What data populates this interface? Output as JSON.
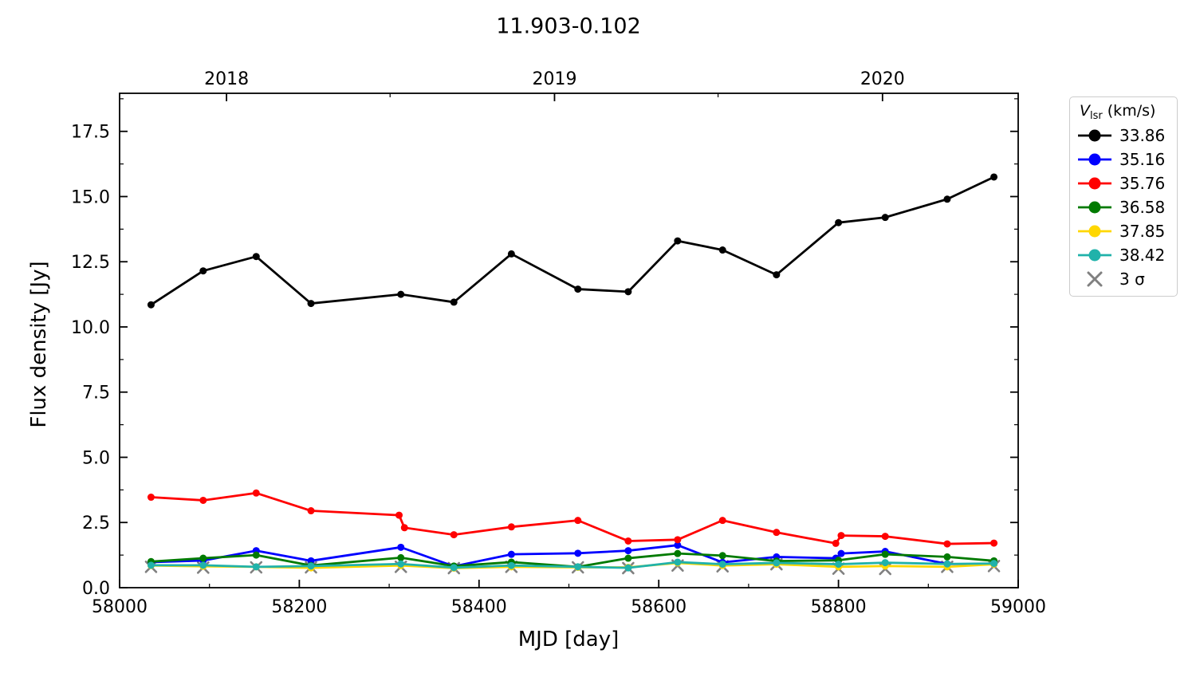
{
  "chart_data": {
    "type": "line",
    "title": "11.903-0.102",
    "xlabel": "MJD [day]",
    "ylabel": "Flux density [Jy]",
    "xlim": [
      58000,
      59000
    ],
    "ylim": [
      0,
      18.96
    ],
    "grid": false,
    "legend_position": "outside-right",
    "x_axis": {
      "major_ticks": [
        58000,
        58200,
        58400,
        58600,
        58800,
        59000
      ],
      "major_tick_labels": [
        "58000",
        "58200",
        "58400",
        "58600",
        "58800",
        "59000"
      ],
      "minor_ticks": [
        58100,
        58300,
        58500,
        58700,
        58900
      ]
    },
    "y_axis": {
      "major_ticks": [
        0,
        2.5,
        5.0,
        7.5,
        10.0,
        12.5,
        15.0,
        17.5
      ],
      "major_tick_labels": [
        "0.0",
        "2.5",
        "5.0",
        "7.5",
        "10.0",
        "12.5",
        "15.0",
        "17.5"
      ],
      "minor_ticks": [
        1.25,
        3.75,
        6.25,
        8.75,
        11.25,
        13.75,
        16.25,
        18.75
      ]
    },
    "top_axis": {
      "year_ticks": [
        {
          "label": "2018",
          "mjd": 58119
        },
        {
          "label": "2019",
          "mjd": 58484
        },
        {
          "label": "2020",
          "mjd": 58849
        }
      ],
      "minor_ticks": [
        58301,
        58666
      ]
    },
    "legend": {
      "title_v": "V",
      "title_sub": "lsr",
      "title_rest": " (km/s)",
      "entries": [
        {
          "label": "33.86",
          "color": "#000000",
          "marker": "circle"
        },
        {
          "label": "35.16",
          "color": "#0000ff",
          "marker": "circle"
        },
        {
          "label": "35.76",
          "color": "#ff0000",
          "marker": "circle"
        },
        {
          "label": "36.58",
          "color": "#007a00",
          "marker": "circle"
        },
        {
          "label": "37.85",
          "color": "#ffd700",
          "marker": "circle"
        },
        {
          "label": "38.42",
          "color": "#20b2aa",
          "marker": "circle"
        },
        {
          "label": "3 σ",
          "color": "#808080",
          "marker": "x"
        }
      ]
    },
    "series": [
      {
        "name": "33.86",
        "color": "#000000",
        "x": [
          58035,
          58093,
          58152,
          58213,
          58313,
          58372,
          58436,
          58510,
          58566,
          58621,
          58671,
          58731,
          58800,
          58852,
          58921,
          58973
        ],
        "y": [
          10.85,
          12.15,
          12.7,
          10.9,
          11.25,
          10.95,
          12.8,
          11.45,
          11.35,
          13.3,
          12.95,
          12.0,
          14.0,
          14.2,
          14.9,
          15.75
        ]
      },
      {
        "name": "35.16",
        "color": "#0000ff",
        "x": [
          58035,
          58093,
          58152,
          58213,
          58313,
          58372,
          58436,
          58510,
          58566,
          58621,
          58671,
          58731,
          58797,
          58803,
          58852,
          58921,
          58973
        ],
        "y": [
          0.98,
          1.04,
          1.42,
          1.03,
          1.55,
          0.82,
          1.28,
          1.32,
          1.42,
          1.63,
          0.97,
          1.18,
          1.13,
          1.31,
          1.39,
          0.91,
          0.9
        ]
      },
      {
        "name": "35.76",
        "color": "#ff0000",
        "x": [
          58035,
          58093,
          58152,
          58213,
          58311,
          58317,
          58372,
          58436,
          58510,
          58566,
          58621,
          58671,
          58731,
          58797,
          58803,
          58852,
          58921,
          58973
        ],
        "y": [
          3.47,
          3.35,
          3.63,
          2.95,
          2.78,
          2.3,
          2.03,
          2.33,
          2.58,
          1.79,
          1.84,
          2.58,
          2.12,
          1.7,
          2.0,
          1.97,
          1.68,
          1.71
        ]
      },
      {
        "name": "36.58",
        "color": "#007a00",
        "x": [
          58035,
          58093,
          58152,
          58213,
          58313,
          58372,
          58436,
          58510,
          58566,
          58621,
          58671,
          58731,
          58800,
          58852,
          58921,
          58973
        ],
        "y": [
          1.0,
          1.13,
          1.25,
          0.85,
          1.15,
          0.83,
          0.98,
          0.8,
          1.13,
          1.31,
          1.23,
          1.02,
          1.05,
          1.28,
          1.18,
          1.03
        ]
      },
      {
        "name": "37.85",
        "color": "#ffd700",
        "x": [
          58035,
          58093,
          58152,
          58213,
          58313,
          58372,
          58436,
          58510,
          58566,
          58621,
          58671,
          58731,
          58800,
          58852,
          58921,
          58973
        ],
        "y": [
          0.85,
          0.82,
          0.8,
          0.76,
          0.85,
          0.75,
          0.8,
          0.78,
          0.78,
          0.95,
          0.85,
          0.9,
          0.8,
          0.83,
          0.8,
          0.9
        ]
      },
      {
        "name": "38.42",
        "color": "#20b2aa",
        "x": [
          58035,
          58093,
          58152,
          58213,
          58313,
          58372,
          58436,
          58510,
          58566,
          58621,
          58671,
          58731,
          58800,
          58852,
          58921,
          58973
        ],
        "y": [
          0.86,
          0.86,
          0.8,
          0.83,
          0.91,
          0.77,
          0.85,
          0.8,
          0.76,
          0.98,
          0.9,
          0.95,
          0.9,
          0.96,
          0.91,
          0.93
        ]
      }
    ],
    "sigma_markers": {
      "name": "3 σ",
      "color": "#808080",
      "x": [
        58035,
        58093,
        58152,
        58213,
        58313,
        58372,
        58436,
        58510,
        58566,
        58621,
        58671,
        58731,
        58800,
        58852,
        58921,
        58973
      ],
      "y": [
        0.8,
        0.77,
        0.78,
        0.78,
        0.8,
        0.75,
        0.8,
        0.78,
        0.75,
        0.85,
        0.82,
        0.9,
        0.73,
        0.72,
        0.8,
        0.83
      ]
    }
  }
}
